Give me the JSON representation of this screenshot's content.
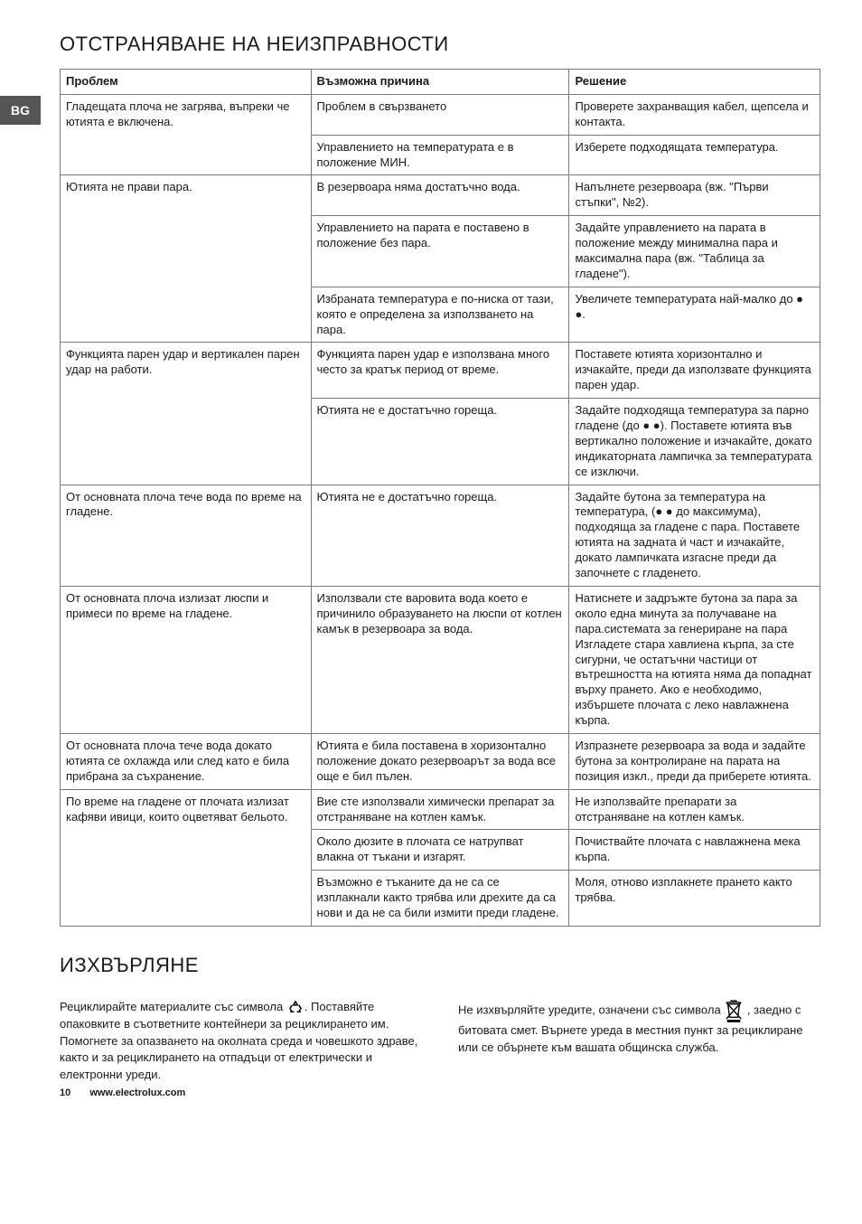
{
  "lang_tab": "BG",
  "heading_troubleshooting": "ОТСТРАНЯВАНЕ НА НЕИЗПРАВНОСТИ",
  "heading_disposal": "ИЗХВЪРЛЯНЕ",
  "table_headers": {
    "problem": "Проблем",
    "cause": "Възможна причина",
    "solution": "Решение"
  },
  "rows": [
    {
      "problem": "Гладещата плоча не загрява, въпреки че ютията е включена.",
      "cells": [
        {
          "cause": "Проблем в свързването",
          "solution": "Проверете захранващия кабел, щепсела и контакта."
        },
        {
          "cause": "Управлението на температурата е в положение МИН.",
          "solution": "Изберете подходящата температура."
        }
      ]
    },
    {
      "problem": "Ютията не прави пара.",
      "cells": [
        {
          "cause": "В резервоара няма достатъчно вода.",
          "solution": "Напълнете резервоара (вж. \"Първи стъпки\", №2)."
        },
        {
          "cause": "Управлението на парата е поставено в положение без пара.",
          "solution": "Задайте управлението на парата в положение между минимална пара и максимална пара (вж. \"Таблица за гладене\")."
        },
        {
          "cause": "Избраната температура е по-ниска от тази, която е определена за използването на пара.",
          "solution": "Увеличете температурата най-малко до ● ●."
        }
      ]
    },
    {
      "problem": "Функцията парен удар и вертикален парен удар на работи.",
      "cells": [
        {
          "cause": "Функцията парен удар е използвана много често за кратък период от време.",
          "solution": "Поставете ютията хоризонтално и изчакайте, преди да използвате функцията парен удар."
        },
        {
          "cause": "Ютията не е достатъчно гореща.",
          "solution": "Задайте подходяща температура за парно гладене (до ● ●). Поставете ютията във вертикално положение и изчакайте, докато индикаторната лампичка за температурата се изключи."
        }
      ]
    },
    {
      "problem": "От основната плоча тече вода по време на гладене.",
      "cells": [
        {
          "cause": "Ютията не е достатъчно гореща.",
          "solution": "Задайте бутона за температура на температура, (● ● до максимума), подходяща за гладене с пара. Поставете ютията на задната ѝ част и изчакайте, докато лампичката изгасне преди да започнете с гладенето."
        }
      ]
    },
    {
      "problem": "От основната плоча излизат люспи и примеси по време на гладене.",
      "cells": [
        {
          "cause": "Използвали сте варовита вода което е причинило образуването на люспи от котлен камък в резервоара за вода.",
          "solution": "Натиснете и задръжте бутона за пара за около една минута за получаване на пара.системата за генериране на пара Изгладете стара хавлиена кърпа, за сте сигурни, че остатъчни частици от вътрешността на ютията няма да попаднат върху прането. Ако е необходимо, избършете плочата с леко навлажнена кърпа."
        }
      ]
    },
    {
      "problem": "От основната плоча тече вода докато ютията се охлажда или след като е била прибрана за съхранение.",
      "cells": [
        {
          "cause": "Ютията е била поставена в хоризонтално положение докато резервоарът за вода все още е бил пълен.",
          "solution": "Изпразнете резервоара за вода и задайте бутона за контролиране на парата на позиция изкл., преди да приберете ютията."
        }
      ]
    },
    {
      "problem": "По време на гладене от плочата излизат кафяви ивици, които оцветяват бельото.",
      "cells": [
        {
          "cause": "Вие сте използвали химически препарат за отстраняване на котлен камък.",
          "solution": "Не използвайте препарати за отстраняване на котлен камък."
        },
        {
          "cause": "Около дюзите в плочата се натрупват влакна от тъкани и изгарят.",
          "solution": "Почиствайте плочата с навлажнена мека кърпа."
        },
        {
          "cause": "Възможно е тъканите да не са се изплакнали както трябва или дрехите да са нови и да не са били измити преди гладене.",
          "solution": "Моля, отново изплакнете прането както трябва."
        }
      ]
    }
  ],
  "disposal_left_pre": "Рециклирайте материалите със символа ",
  "disposal_left_post": ". Поставяйте опаковките в съответните контейнери за рециклирането им. Помогнете за опазването на околната среда и човешкото здраве, както и за рециклирането на отпадъци от електрически и електронни уреди.",
  "disposal_right_pre": "Не изхвърляйте уредите, означени със символа ",
  "disposal_right_post": " , заедно с битовата смет. Върнете уреда в местния пункт за рециклиране или се обърнете към вашата общинска служба.",
  "footer": {
    "page": "10",
    "url": "www.electrolux.com"
  }
}
